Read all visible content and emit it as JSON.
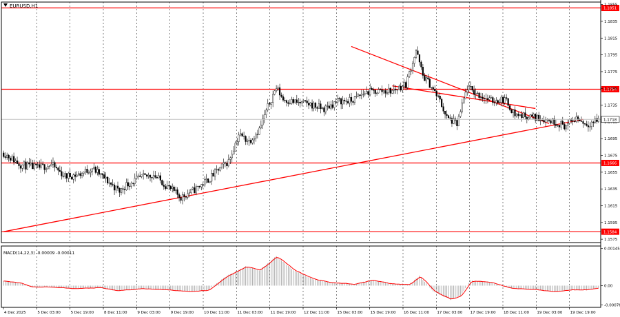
{
  "symbol_label": "EURUSD,H1",
  "macd_label": "MACD(14,22,3) -0.00009 -0.00011",
  "chart_data": [
    {
      "type": "candlestick",
      "title": "EURUSD,H1",
      "ylim": [
        1.1571,
        1.1858
      ],
      "y_ticks": [
        "1.1855",
        "1.1835",
        "1.1815",
        "1.1795",
        "1.1775",
        "1.1755",
        "1.1735",
        "1.1715",
        "1.1695",
        "1.1675",
        "1.1655",
        "1.1635",
        "1.1615",
        "1.1595",
        "1.1575"
      ],
      "price_levels": [
        {
          "value": 1.1851,
          "label": "1.1851"
        },
        {
          "value": 1.1754,
          "label": "1.1754"
        },
        {
          "value": 1.1666,
          "label": "1.1666"
        },
        {
          "value": 1.1584,
          "label": "1.1584"
        }
      ],
      "current_price": {
        "value": 1.1718,
        "label": "1.1718"
      },
      "x_ticks": [
        "4 Dec 2025",
        "5 Dec 03:00",
        "5 Dec 19:00",
        "8 Dec 11:00",
        "9 Dec 03:00",
        "9 Dec 19:00",
        "10 Dec 11:00",
        "11 Dec 03:00",
        "11 Dec 19:00",
        "12 Dec 11:00",
        "15 Dec 03:00",
        "15 Dec 19:00",
        "16 Dec 11:00",
        "17 Dec 03:00",
        "17 Dec 19:00",
        "18 Dec 11:00",
        "19 Dec 03:00",
        "19 Dec 19:00"
      ],
      "close_anchors": [
        [
          0,
          1.1678
        ],
        [
          10,
          1.1664
        ],
        [
          20,
          1.166
        ],
        [
          28,
          1.1664
        ],
        [
          36,
          1.165
        ],
        [
          44,
          1.1652
        ],
        [
          52,
          1.166
        ],
        [
          60,
          1.1646
        ],
        [
          68,
          1.1632
        ],
        [
          72,
          1.164
        ],
        [
          80,
          1.1648
        ],
        [
          88,
          1.1652
        ],
        [
          96,
          1.1638
        ],
        [
          104,
          1.1625
        ],
        [
          112,
          1.1634
        ],
        [
          120,
          1.1646
        ],
        [
          126,
          1.1658
        ],
        [
          132,
          1.1668
        ],
        [
          138,
          1.17
        ],
        [
          144,
          1.1692
        ],
        [
          150,
          1.1706
        ],
        [
          156,
          1.1738
        ],
        [
          160,
          1.1756
        ],
        [
          164,
          1.1742
        ],
        [
          172,
          1.1738
        ],
        [
          180,
          1.1736
        ],
        [
          188,
          1.173
        ],
        [
          196,
          1.174
        ],
        [
          204,
          1.174
        ],
        [
          212,
          1.175
        ],
        [
          220,
          1.1752
        ],
        [
          228,
          1.1752
        ],
        [
          236,
          1.176
        ],
        [
          242,
          1.18
        ],
        [
          246,
          1.177
        ],
        [
          250,
          1.176
        ],
        [
          256,
          1.174
        ],
        [
          260,
          1.172
        ],
        [
          266,
          1.1712
        ],
        [
          272,
          1.1756
        ],
        [
          278,
          1.1748
        ],
        [
          286,
          1.174
        ],
        [
          294,
          1.1742
        ],
        [
          300,
          1.1724
        ],
        [
          306,
          1.1722
        ],
        [
          314,
          1.172
        ],
        [
          322,
          1.1716
        ],
        [
          330,
          1.171
        ],
        [
          336,
          1.172
        ],
        [
          342,
          1.1712
        ],
        [
          349,
          1.1718
        ]
      ]
    },
    {
      "type": "histogram",
      "title": "MACD(14,22,3) -0.00009 -0.00011",
      "ylim": [
        -0.00085,
        0.00155
      ],
      "y_ticks": [
        "0.00145",
        "0.00",
        "-0.00076"
      ],
      "histogram_anchors": [
        [
          0,
          0.00018
        ],
        [
          10,
          0.0001
        ],
        [
          16,
          -6e-05
        ],
        [
          26,
          -4e-05
        ],
        [
          40,
          -0.00012
        ],
        [
          56,
          -8e-05
        ],
        [
          66,
          -0.0002
        ],
        [
          80,
          -0.00012
        ],
        [
          96,
          -0.00016
        ],
        [
          108,
          -0.00024
        ],
        [
          120,
          -0.00018
        ],
        [
          130,
          0.00035
        ],
        [
          142,
          0.00075
        ],
        [
          150,
          0.0006
        ],
        [
          160,
          0.00115
        ],
        [
          170,
          0.0006
        ],
        [
          182,
          0.00024
        ],
        [
          194,
          0.0001
        ],
        [
          206,
          6e-05
        ],
        [
          216,
          0.00022
        ],
        [
          226,
          8e-05
        ],
        [
          238,
          4e-05
        ],
        [
          244,
          0.00038
        ],
        [
          252,
          -0.00022
        ],
        [
          262,
          -0.00055
        ],
        [
          268,
          -0.0004
        ],
        [
          274,
          0.0002
        ],
        [
          286,
          0.00012
        ],
        [
          298,
          -0.00012
        ],
        [
          310,
          -0.00014
        ],
        [
          322,
          -0.00024
        ],
        [
          334,
          -0.00016
        ],
        [
          342,
          -0.00016
        ],
        [
          349,
          -9e-05
        ]
      ]
    }
  ]
}
